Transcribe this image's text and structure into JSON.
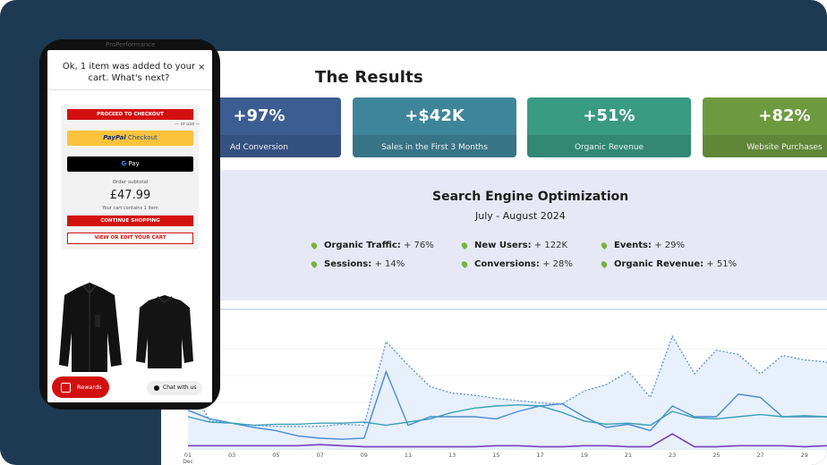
{
  "dashboard": {
    "title": "The Results",
    "kpis": [
      {
        "value": "+97%",
        "label": "Ad Conversion",
        "color": "#3c5d92"
      },
      {
        "value": "+$42K",
        "label": "Sales in the First 3 Months",
        "color": "#3f8599"
      },
      {
        "value": "+51%",
        "label": "Organic Revenue",
        "color": "#3a9b83"
      },
      {
        "value": "+82%",
        "label": "Website Purchases",
        "color": "#6d9a3f"
      }
    ],
    "seo": {
      "title": "Search Engine Optimization",
      "period": "July - August 2024",
      "metrics": [
        {
          "name": "Organic Traffic:",
          "value": "+ 76%"
        },
        {
          "name": "New Users:",
          "value": "+ 122K"
        },
        {
          "name": "Events:",
          "value": "+ 29%"
        },
        {
          "name": "Sessions:",
          "value": "+ 14%"
        },
        {
          "name": "Conversions:",
          "value": "+ 28%"
        },
        {
          "name": "Organic Revenue:",
          "value": "+ 51%"
        }
      ]
    }
  },
  "chart_data": {
    "type": "line",
    "x_ticks": [
      "01",
      "03",
      "05",
      "07",
      "09",
      "11",
      "13",
      "15",
      "17",
      "19",
      "21",
      "23",
      "25",
      "27",
      "29"
    ],
    "x_month": "Dec",
    "series": [
      {
        "values": [
          62,
          26,
          24,
          22,
          21,
          21,
          21,
          23,
          22,
          100,
          78,
          58,
          52,
          50,
          47,
          45,
          43,
          42,
          54,
          60,
          72,
          48,
          105,
          70,
          92,
          88,
          70,
          87,
          83,
          81,
          48,
          20,
          23,
          26,
          30,
          32,
          34,
          36
        ]
      },
      {
        "values": [
          36,
          28,
          24,
          20,
          17,
          12,
          10,
          9,
          10,
          72,
          22,
          30,
          30,
          30,
          28,
          35,
          40,
          42,
          30,
          20,
          23,
          17,
          40,
          30,
          30,
          51,
          48,
          30,
          30,
          30,
          7,
          7,
          10,
          12,
          12,
          13,
          14,
          14
        ]
      },
      {
        "values": [
          30,
          25,
          24,
          22,
          23,
          23,
          24,
          24,
          25,
          22,
          25,
          28,
          34,
          38,
          40,
          41,
          40,
          34,
          26,
          23,
          24,
          22,
          35,
          29,
          28,
          30,
          32,
          30,
          31,
          30,
          30,
          30,
          30,
          31,
          30,
          30,
          30,
          30
        ]
      },
      {
        "values": [
          3,
          3,
          3,
          3,
          3,
          3,
          4,
          3,
          2,
          2,
          2,
          2,
          2,
          2,
          3,
          3,
          2,
          2,
          3,
          3,
          2,
          2,
          14,
          2,
          2,
          3,
          3,
          3,
          2,
          3,
          3,
          3,
          3,
          3,
          3,
          3,
          3,
          3
        ]
      }
    ],
    "colors": [
      "#5b8fd6",
      "#4a8bd2",
      "#3aa0b7",
      "#7a3ebd"
    ]
  },
  "phone": {
    "status_text": "ProPerformance",
    "cart_message": "Ok, 1 item was added to your cart. What's next?",
    "close": "×",
    "checkout": "PROCEED TO CHECKOUT",
    "or_use": "— or use —",
    "paypal_pay": "PayPal",
    "paypal_checkout": "Checkout",
    "gpay_g": "G",
    "gpay_pay": "Pay",
    "subtotal_label": "Order subtotal",
    "subtotal_value": "£47.99",
    "cart_contains": "Your cart contains 1 item",
    "continue": "CONTINUE SHOPPING",
    "view_edit": "VIEW OR EDIT YOUR CART",
    "rewards": "Rewards",
    "chat": "Chat with us"
  },
  "colors": {
    "background": "#1e3a52",
    "brand_red": "#d31010",
    "bullet": "#7bb13d",
    "seo_bg": "#e6e9f5"
  }
}
